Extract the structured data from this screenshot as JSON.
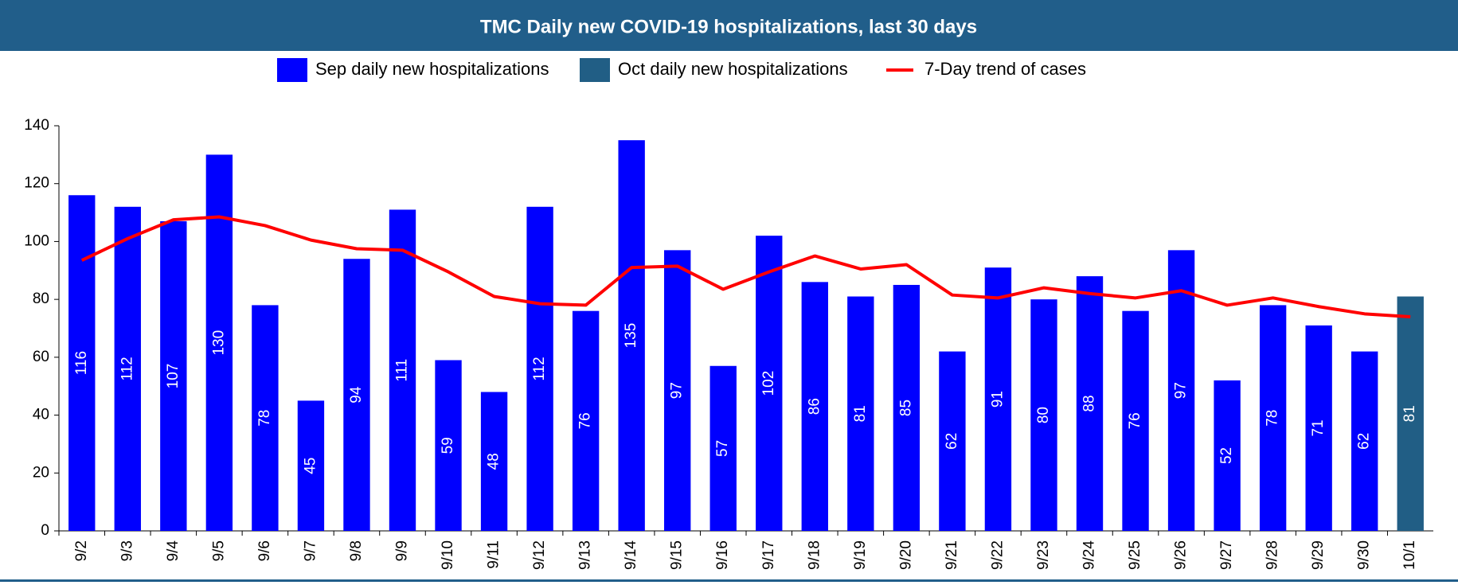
{
  "chart_data": {
    "type": "bar",
    "title": "TMC Daily new COVID-19 hospitalizations, last 30 days",
    "categories": [
      "9/2",
      "9/3",
      "9/4",
      "9/5",
      "9/6",
      "9/7",
      "9/8",
      "9/9",
      "9/10",
      "9/11",
      "9/12",
      "9/13",
      "9/14",
      "9/15",
      "9/16",
      "9/17",
      "9/18",
      "9/19",
      "9/20",
      "9/21",
      "9/22",
      "9/23",
      "9/24",
      "9/25",
      "9/26",
      "9/27",
      "9/28",
      "9/29",
      "9/30",
      "10/1"
    ],
    "series": [
      {
        "name": "Sep daily new hospitalizations",
        "color": "#0000ff",
        "type": "bar",
        "values": [
          116,
          112,
          107,
          130,
          78,
          45,
          94,
          111,
          59,
          48,
          112,
          76,
          135,
          97,
          57,
          102,
          86,
          81,
          85,
          62,
          91,
          80,
          88,
          76,
          97,
          52,
          78,
          71,
          62,
          null
        ]
      },
      {
        "name": "Oct daily new hospitalizations",
        "color": "#215e85",
        "type": "bar",
        "values": [
          null,
          null,
          null,
          null,
          null,
          null,
          null,
          null,
          null,
          null,
          null,
          null,
          null,
          null,
          null,
          null,
          null,
          null,
          null,
          null,
          null,
          null,
          null,
          null,
          null,
          null,
          null,
          null,
          null,
          81
        ]
      },
      {
        "name": "7-Day trend of cases",
        "color": "#ff0000",
        "type": "line",
        "values": [
          93.5,
          101,
          107.5,
          108.5,
          105.5,
          100.5,
          97.5,
          97,
          89.5,
          81,
          78.5,
          78,
          91,
          91.5,
          83.5,
          89.5,
          95,
          90.5,
          92,
          81.5,
          80.5,
          84,
          82,
          80.5,
          83,
          78,
          80.5,
          77.5,
          75,
          74
        ]
      }
    ],
    "ylim": [
      0,
      140
    ],
    "yticks": [
      0,
      20,
      40,
      60,
      80,
      100,
      120,
      140
    ],
    "legend": "top"
  }
}
